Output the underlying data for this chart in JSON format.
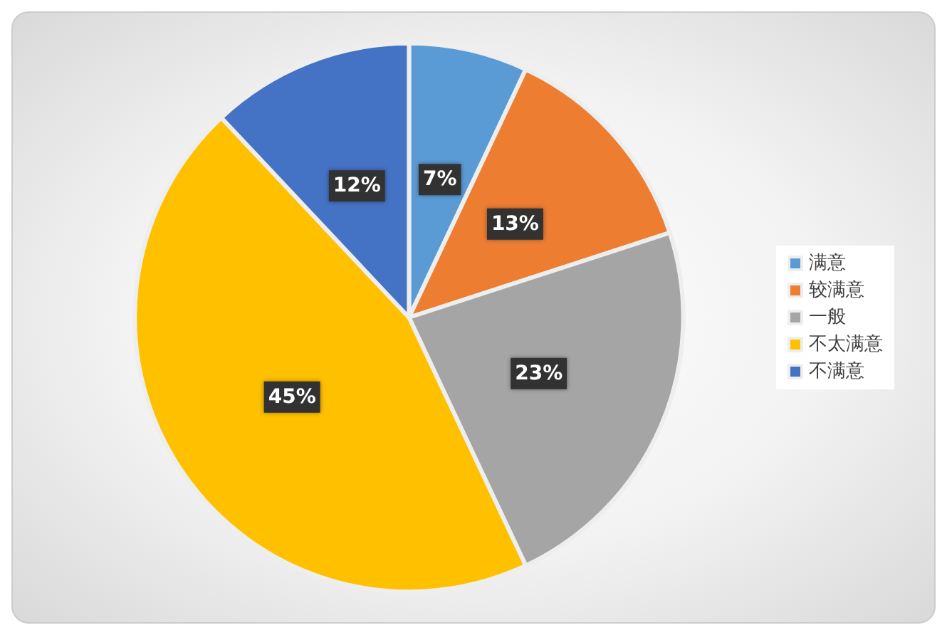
{
  "chart_data": {
    "type": "pie",
    "categories": [
      "满意",
      "较满意",
      "一般",
      "不太满意",
      "不满意"
    ],
    "values": [
      7,
      13,
      23,
      45,
      12
    ],
    "colors": [
      "#5b9bd5",
      "#ed7d31",
      "#a5a5a5",
      "#ffc000",
      "#4472c4"
    ],
    "value_labels": [
      "7%",
      "13%",
      "23%",
      "45%",
      "12%"
    ],
    "legend": "right"
  }
}
